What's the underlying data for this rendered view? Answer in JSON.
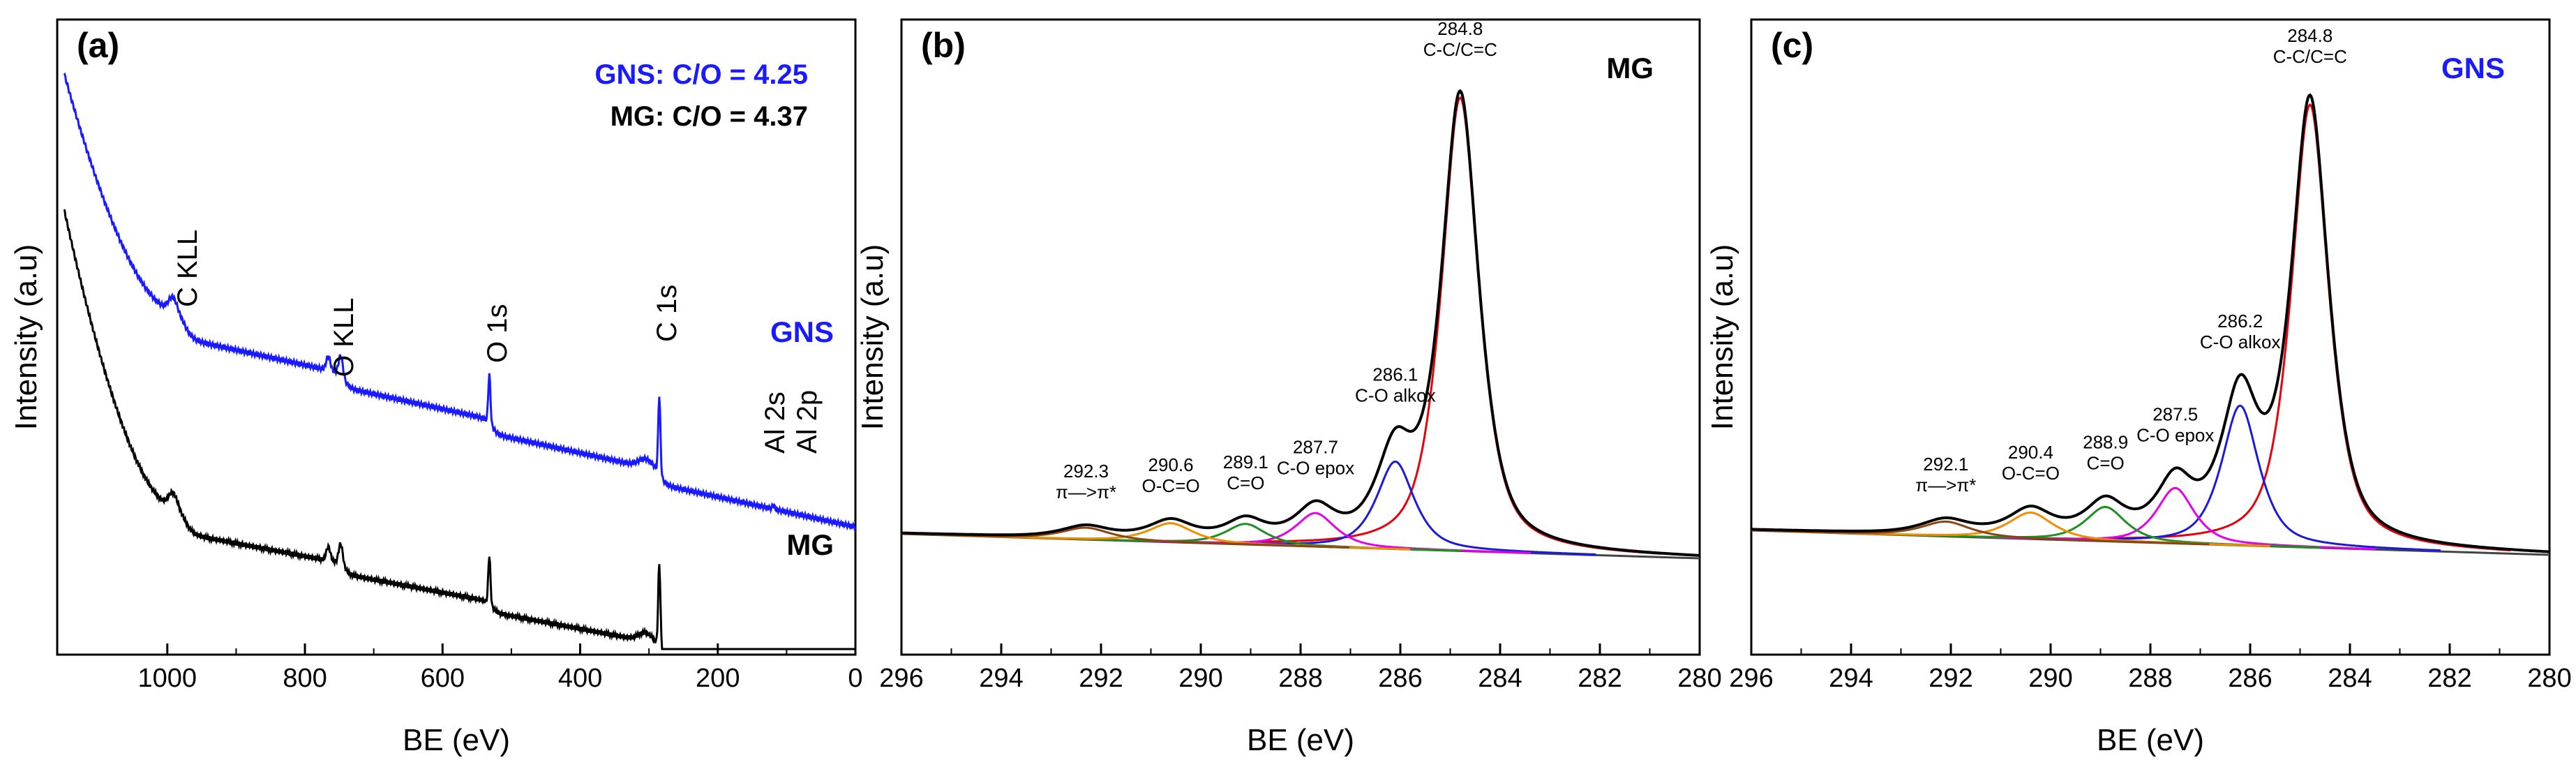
{
  "chart_data": [
    {
      "panel": "(a)",
      "type": "line",
      "xlabel": "BE (eV)",
      "ylabel": "Intensity (a.u)",
      "xlim": [
        1160,
        0
      ],
      "xticks": [
        1000,
        800,
        600,
        400,
        200,
        0
      ],
      "ratios": [
        {
          "label": "GNS: C/O = 4.25",
          "color": "#1a1aff"
        },
        {
          "label": "MG: C/O = 4.37",
          "color": "#000000"
        }
      ],
      "peak_labels": [
        "C KLL",
        "O KLL",
        "O 1s",
        "C 1s",
        "Al 2s",
        "Al 2p"
      ],
      "series": [
        {
          "name": "GNS",
          "color": "#1a1aff",
          "baseline": 1.0,
          "offset": 1.0
        },
        {
          "name": "MG",
          "color": "#000000",
          "baseline": 0.0,
          "offset": 0.0
        }
      ]
    },
    {
      "panel": "(b)",
      "type": "line",
      "sample": "MG",
      "xlabel": "BE (eV)",
      "ylabel": "Intensity (a.u)",
      "xlim": [
        296,
        280
      ],
      "xticks": [
        296,
        294,
        292,
        290,
        288,
        286,
        284,
        282,
        280
      ],
      "components": [
        {
          "center": 284.8,
          "value": "284.8",
          "label": "C-C/C=C",
          "color": "#e8000b",
          "height": 8.4,
          "width": 0.42
        },
        {
          "center": 286.1,
          "value": "286.1",
          "label": "C-O alkox",
          "color": "#1a1adb",
          "height": 1.62,
          "width": 0.42
        },
        {
          "center": 287.7,
          "value": "287.7",
          "label": "C-O epox",
          "color": "#e600e6",
          "height": 0.62,
          "width": 0.45
        },
        {
          "center": 289.1,
          "value": "289.1",
          "label": "C=O",
          "color": "#1f8f1f",
          "height": 0.38,
          "width": 0.45
        },
        {
          "center": 290.6,
          "value": "290.6",
          "label": "O-C=O",
          "color": "#f28c00",
          "height": 0.35,
          "width": 0.5
        },
        {
          "center": 292.3,
          "value": "292.3",
          "label": "π—>π*",
          "color": "#8b4513",
          "height": 0.22,
          "width": 0.55
        }
      ]
    },
    {
      "panel": "(c)",
      "type": "line",
      "sample": "GNS",
      "xlabel": "BE (eV)",
      "ylabel": "Intensity (a.u)",
      "xlim": [
        296,
        280
      ],
      "xticks": [
        296,
        294,
        292,
        290,
        288,
        286,
        284,
        282,
        280
      ],
      "components": [
        {
          "center": 284.8,
          "value": "284.8",
          "label": "C-C/C=C",
          "color": "#e8000b",
          "height": 8.4,
          "width": 0.42
        },
        {
          "center": 286.2,
          "value": "286.2",
          "label": "C-O alkox",
          "color": "#1a1adb",
          "height": 2.65,
          "width": 0.42
        },
        {
          "center": 287.5,
          "value": "287.5",
          "label": "C-O epox",
          "color": "#e600e6",
          "height": 1.05,
          "width": 0.42
        },
        {
          "center": 288.9,
          "value": "288.9",
          "label": "C=O",
          "color": "#1f8f1f",
          "height": 0.65,
          "width": 0.45
        },
        {
          "center": 290.4,
          "value": "290.4",
          "label": "O-C=O",
          "color": "#f28c00",
          "height": 0.5,
          "width": 0.5
        },
        {
          "center": 292.1,
          "value": "292.1",
          "label": "π—>π*",
          "color": "#8b4513",
          "height": 0.28,
          "width": 0.55
        }
      ]
    }
  ]
}
